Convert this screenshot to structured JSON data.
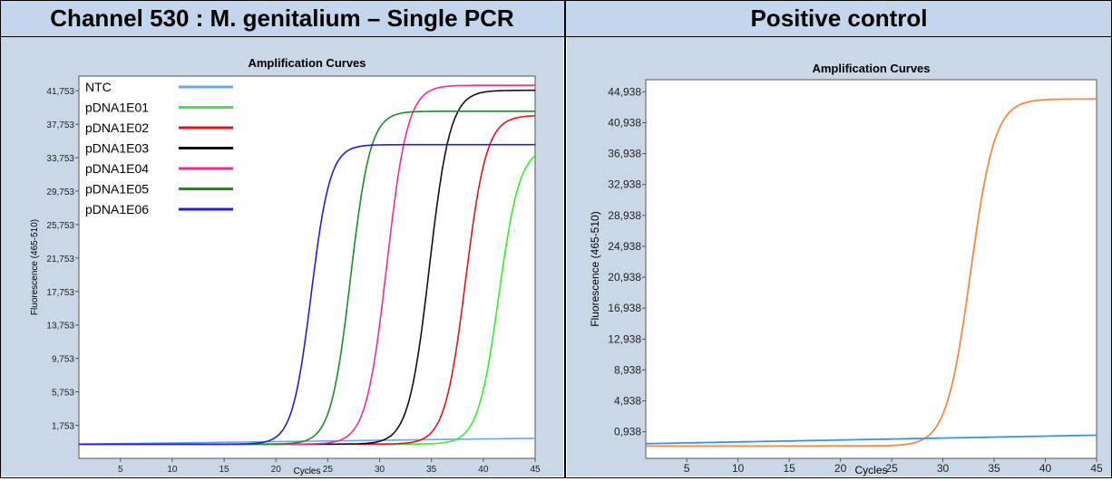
{
  "headers": {
    "left": "Channel 530 : M. genitalium – Single PCR",
    "right": "Positive control"
  },
  "chart_data": [
    {
      "type": "line",
      "title": "Amplification Curves",
      "xlabel": "Cycles",
      "ylabel": "Fluorescence (465-510)",
      "xlim": [
        1,
        45
      ],
      "ylim": [
        -2.2,
        43.5
      ],
      "xticks": [
        5,
        10,
        15,
        20,
        25,
        30,
        35,
        40,
        45
      ],
      "yticks": [
        1.753,
        5.753,
        9.753,
        13.753,
        17.753,
        21.753,
        25.753,
        29.753,
        33.753,
        37.753,
        41.753
      ],
      "ytick_labels": [
        "1,753",
        "5,753",
        "9,753",
        "13,753",
        "17,753",
        "21,753",
        "25,753",
        "29,753",
        "33,753",
        "37,753",
        "41,753"
      ],
      "legend_position": "top-left",
      "series": [
        {
          "name": "NTC",
          "color": "#6aa4f4",
          "baseline": -0.5,
          "plateau": 0.2,
          "midpoint": null,
          "slope": 1
        },
        {
          "name": "pDNA1E01",
          "color": "#33ee33",
          "baseline": -0.5,
          "plateau": 35.0,
          "midpoint": 41.5,
          "slope": 1.0
        },
        {
          "name": "pDNA1E02",
          "color": "#e2141c",
          "baseline": -0.5,
          "plateau": 38.8,
          "midpoint": 38.3,
          "slope": 1.0
        },
        {
          "name": "pDNA1E03",
          "color": "#111111",
          "baseline": -0.5,
          "plateau": 41.8,
          "midpoint": 34.8,
          "slope": 1.0
        },
        {
          "name": "pDNA1E04",
          "color": "#f02d95",
          "baseline": -0.5,
          "plateau": 42.4,
          "midpoint": 30.7,
          "slope": 1.0
        },
        {
          "name": "pDNA1E05",
          "color": "#1e8a28",
          "baseline": -0.5,
          "plateau": 39.3,
          "midpoint": 27.2,
          "slope": 1.05
        },
        {
          "name": "pDNA1E06",
          "color": "#2020d8",
          "baseline": -0.5,
          "plateau": 35.3,
          "midpoint": 23.4,
          "slope": 1.1
        }
      ]
    },
    {
      "type": "line",
      "title": "Amplification Curves",
      "xlabel": "Cycles",
      "ylabel": "Fluorescence (465-510)",
      "xlim": [
        1,
        45
      ],
      "ylim": [
        -2.5,
        46.5
      ],
      "xticks": [
        5,
        10,
        15,
        20,
        25,
        30,
        35,
        40,
        45
      ],
      "yticks": [
        0.938,
        4.938,
        8.938,
        12.938,
        16.938,
        20.938,
        24.938,
        28.938,
        32.938,
        36.938,
        40.938,
        44.938
      ],
      "ytick_labels": [
        "0,938",
        "4,938",
        "8,938",
        "12,938",
        "16,938",
        "20,938",
        "24,938",
        "28,938",
        "32,938",
        "36,938",
        "40,938",
        "44,938"
      ],
      "series": [
        {
          "color": "#f48a4a",
          "baseline": -0.9,
          "plateau": 44.0,
          "midpoint": 32.7,
          "slope": 0.85
        },
        {
          "color": "#3f8fe6",
          "baseline": -0.6,
          "plateau": 0.5,
          "midpoint": null,
          "slope": 1
        }
      ]
    }
  ]
}
